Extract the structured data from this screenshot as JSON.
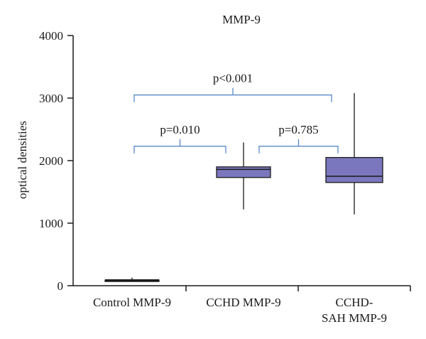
{
  "chart_data": {
    "type": "box",
    "title": "MMP-9",
    "ylabel": "optical densities",
    "xlabel": "",
    "ylim": [
      0,
      4000
    ],
    "yticks": [
      0,
      1000,
      2000,
      3000,
      4000
    ],
    "grid": false,
    "categories": [
      [
        "Control MMP-9"
      ],
      [
        "CCHD MMP-9"
      ],
      [
        "CCHD-",
        "SAH MMP-9"
      ]
    ],
    "boxes": [
      {
        "min": 80,
        "q1": 80,
        "median": 85,
        "q3": 90,
        "max": 130
      },
      {
        "min": 1220,
        "q1": 1730,
        "median": 1860,
        "q3": 1900,
        "max": 2290
      },
      {
        "min": 1140,
        "q1": 1650,
        "median": 1750,
        "q3": 2050,
        "max": 3080
      }
    ],
    "annotations": [
      {
        "label": "p<0.001",
        "from": 0,
        "to": 2,
        "y": 3050
      },
      {
        "label": "p=0.010",
        "from": 0,
        "to": 1,
        "y": 2230
      },
      {
        "label": "p=0.785",
        "from": 1,
        "to": 2,
        "y": 2230
      }
    ],
    "colors": {
      "box_fill": "#7b77be",
      "bracket": "#4a7fc1",
      "axis": "#1a1a1a"
    }
  }
}
